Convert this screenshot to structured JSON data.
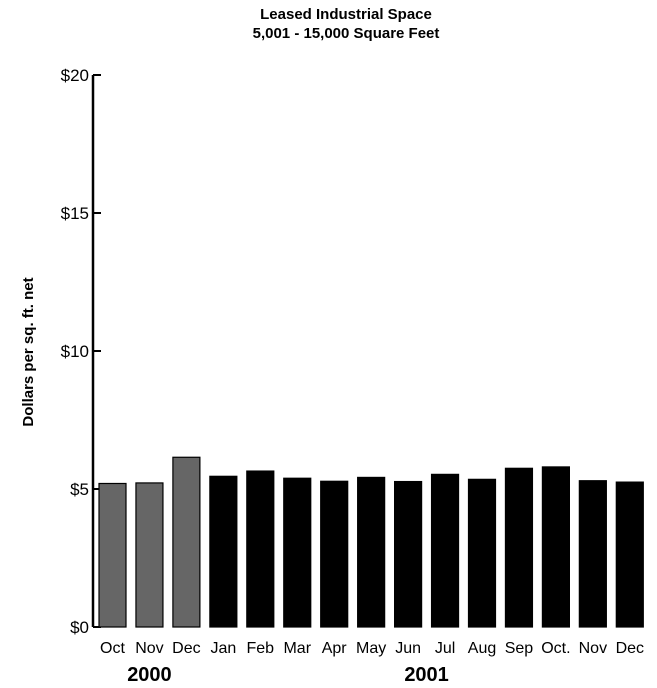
{
  "chart_data": {
    "type": "bar",
    "title": "Leased Industrial Space",
    "subtitle": "5,001 - 15,000 Square Feet",
    "ylabel": "Dollars per sq. ft. net",
    "xlabel": "",
    "ylim": [
      0,
      20
    ],
    "yticks": [
      {
        "value": 0,
        "label": "$0"
      },
      {
        "value": 5,
        "label": "$5"
      },
      {
        "value": 10,
        "label": "$10"
      },
      {
        "value": 15,
        "label": "$15"
      },
      {
        "value": 20,
        "label": "$20"
      }
    ],
    "categories": [
      "Oct",
      "Nov",
      "Dec",
      "Jan",
      "Feb",
      "Mar",
      "Apr",
      "May",
      "Jun",
      "Jul",
      "Aug",
      "Sep",
      "Oct.",
      "Nov",
      "Dec"
    ],
    "values": [
      5.2,
      5.22,
      6.15,
      5.46,
      5.65,
      5.39,
      5.28,
      5.42,
      5.27,
      5.53,
      5.35,
      5.75,
      5.8,
      5.3,
      5.25
    ],
    "groups": [
      {
        "label": "2000",
        "start": 0,
        "end": 2,
        "color": "#666666"
      },
      {
        "label": "2001",
        "start": 3,
        "end": 14,
        "color": "#000000"
      }
    ],
    "grid": false,
    "legend": "none"
  }
}
